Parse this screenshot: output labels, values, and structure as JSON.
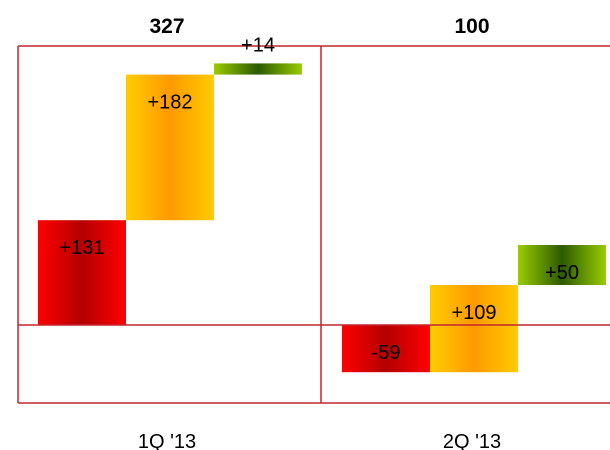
{
  "chart_data": {
    "type": "bar",
    "subtype": "waterfall",
    "categories": [
      "1Q '13",
      "2Q '13"
    ],
    "totals": [
      "327",
      "100"
    ],
    "groups": [
      {
        "category": "1Q '13",
        "total": "327",
        "steps": [
          {
            "label": "+131",
            "value": 131,
            "color": "red"
          },
          {
            "label": "+182",
            "value": 182,
            "color": "orange"
          },
          {
            "label": "+14",
            "value": 14,
            "color": "green"
          }
        ]
      },
      {
        "category": "2Q '13",
        "total": "100",
        "steps": [
          {
            "label": "-59",
            "value": -59,
            "color": "red"
          },
          {
            "label": "+109",
            "value": 109,
            "color": "orange"
          },
          {
            "label": "+50",
            "value": 50,
            "color": "green"
          }
        ]
      }
    ],
    "colors": {
      "frame": "#c0272d",
      "red_edge": "#ff0000",
      "red_mid": "#b30000",
      "orange_edge": "#ffcc00",
      "orange_mid": "#ff9900",
      "green_edge": "#99cc00",
      "green_mid": "#2d5a00"
    }
  }
}
